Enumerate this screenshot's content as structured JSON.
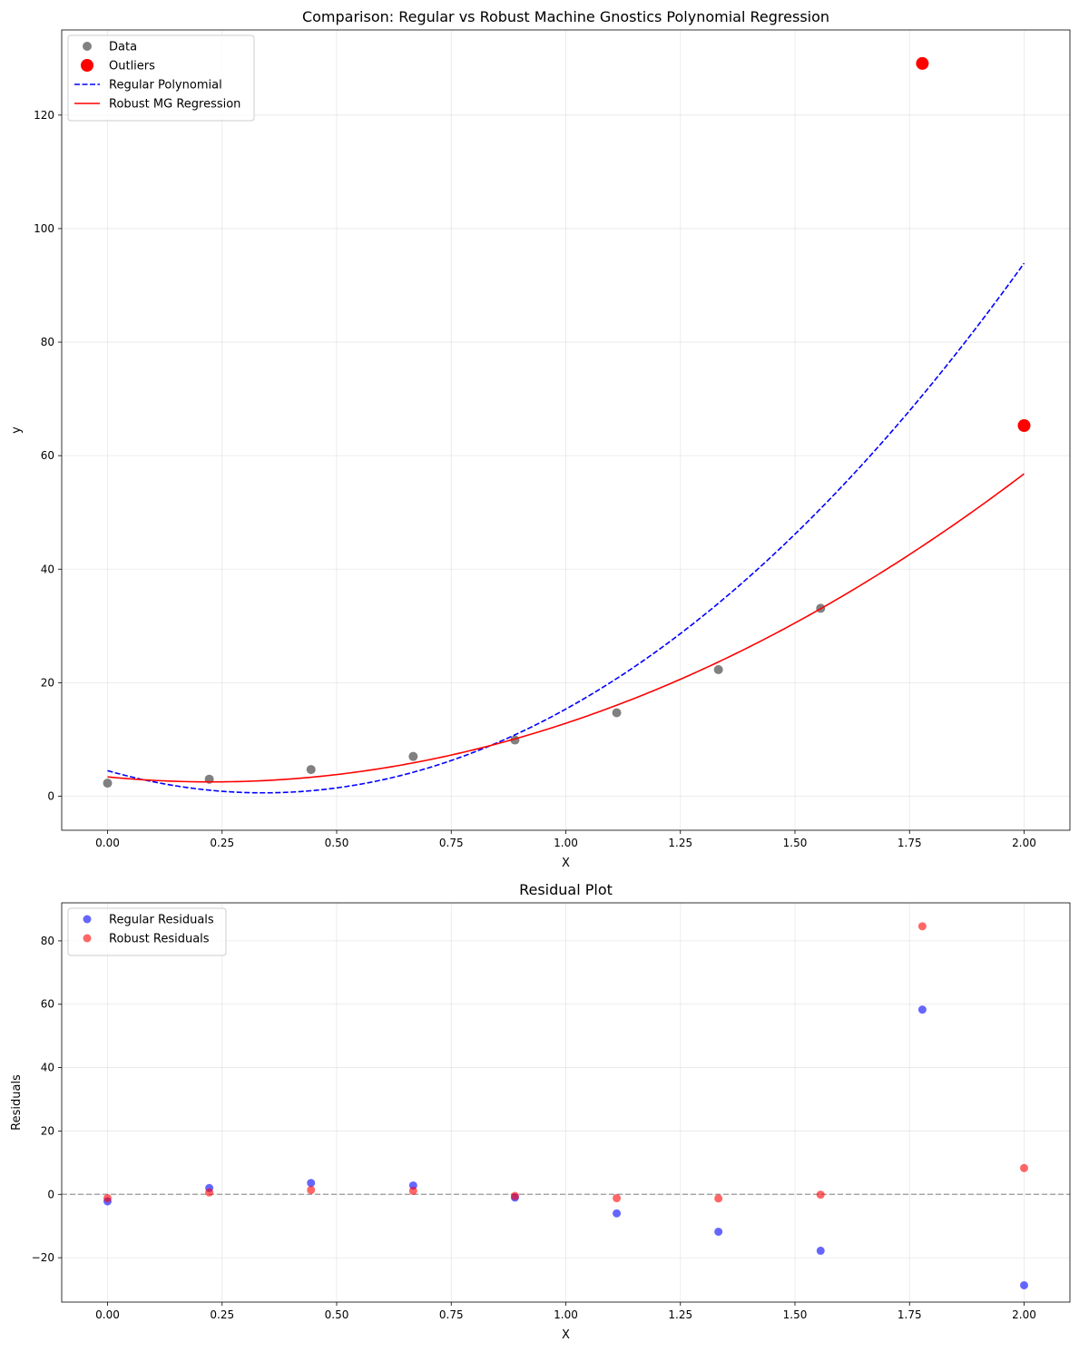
{
  "chart_data": [
    {
      "type": "scatter",
      "title": "Comparison: Regular vs Robust Machine Gnostics Polynomial Regression",
      "xlabel": "X",
      "ylabel": "y",
      "xlim": [
        -0.1,
        2.1
      ],
      "ylim": [
        -6,
        135
      ],
      "xticks": [
        0,
        0.25,
        0.5,
        0.75,
        1.0,
        1.25,
        1.5,
        1.75,
        2.0
      ],
      "xtick_labels": [
        "0.00",
        "0.25",
        "0.50",
        "0.75",
        "1.00",
        "1.25",
        "1.50",
        "1.75",
        "2.00"
      ],
      "yticks": [
        0,
        20,
        40,
        60,
        80,
        100,
        120
      ],
      "ytick_labels": [
        "0",
        "20",
        "40",
        "60",
        "80",
        "100",
        "120"
      ],
      "grid": true,
      "legend_position": "top-left",
      "series": [
        {
          "name": "Data",
          "kind": "scatter",
          "color": "#808080",
          "x": [
            0.0,
            0.222,
            0.444,
            0.667,
            0.889,
            1.111,
            1.333,
            1.556
          ],
          "y": [
            2.3,
            3.0,
            4.7,
            7.0,
            9.9,
            14.7,
            22.3,
            33.1
          ]
        },
        {
          "name": "Outliers",
          "kind": "scatter",
          "color": "#ff0000",
          "x": [
            1.778,
            2.0
          ],
          "y": [
            129.1,
            65.3
          ]
        },
        {
          "name": "Regular Polynomial",
          "kind": "line",
          "dash": "dashed",
          "color": "#0000ff",
          "coefficients": [
            4.5,
            -23.0,
            33.85
          ],
          "x_range": [
            0,
            2
          ]
        },
        {
          "name": "Robust MG Regression",
          "kind": "line",
          "dash": "solid",
          "color": "#ff0000",
          "coefficients": [
            3.4,
            -7.8,
            17.25
          ],
          "x_range": [
            0,
            2
          ]
        }
      ]
    },
    {
      "type": "scatter",
      "title": "Residual Plot",
      "xlabel": "X",
      "ylabel": "Residuals",
      "xlim": [
        -0.1,
        2.1
      ],
      "ylim": [
        -34,
        92
      ],
      "xticks": [
        0,
        0.25,
        0.5,
        0.75,
        1.0,
        1.25,
        1.5,
        1.75,
        2.0
      ],
      "xtick_labels": [
        "0.00",
        "0.25",
        "0.50",
        "0.75",
        "1.00",
        "1.25",
        "1.50",
        "1.75",
        "2.00"
      ],
      "yticks": [
        -20,
        0,
        20,
        40,
        60,
        80
      ],
      "ytick_labels": [
        "−20",
        "0",
        "20",
        "40",
        "60",
        "80"
      ],
      "grid": true,
      "legend_position": "top-left",
      "reference_line": {
        "y": 0,
        "color": "#999999",
        "dash": "dashed"
      },
      "series": [
        {
          "name": "Regular Residuals",
          "color": "#0000ff",
          "opacity": 0.6,
          "x": [
            0.0,
            0.222,
            0.444,
            0.667,
            0.889,
            1.111,
            1.333,
            1.556,
            1.778,
            2.0
          ],
          "y": [
            -2.2,
            2.0,
            3.6,
            2.8,
            -1.0,
            -6.0,
            -11.8,
            -17.8,
            58.3,
            -28.7
          ]
        },
        {
          "name": "Robust Residuals",
          "color": "#ff0000",
          "opacity": 0.6,
          "x": [
            0.0,
            0.222,
            0.444,
            0.667,
            0.889,
            1.111,
            1.333,
            1.556,
            1.778,
            2.0
          ],
          "y": [
            -1.2,
            0.6,
            1.4,
            1.1,
            -0.5,
            -1.2,
            -1.3,
            -0.1,
            84.6,
            8.3
          ]
        }
      ]
    }
  ]
}
